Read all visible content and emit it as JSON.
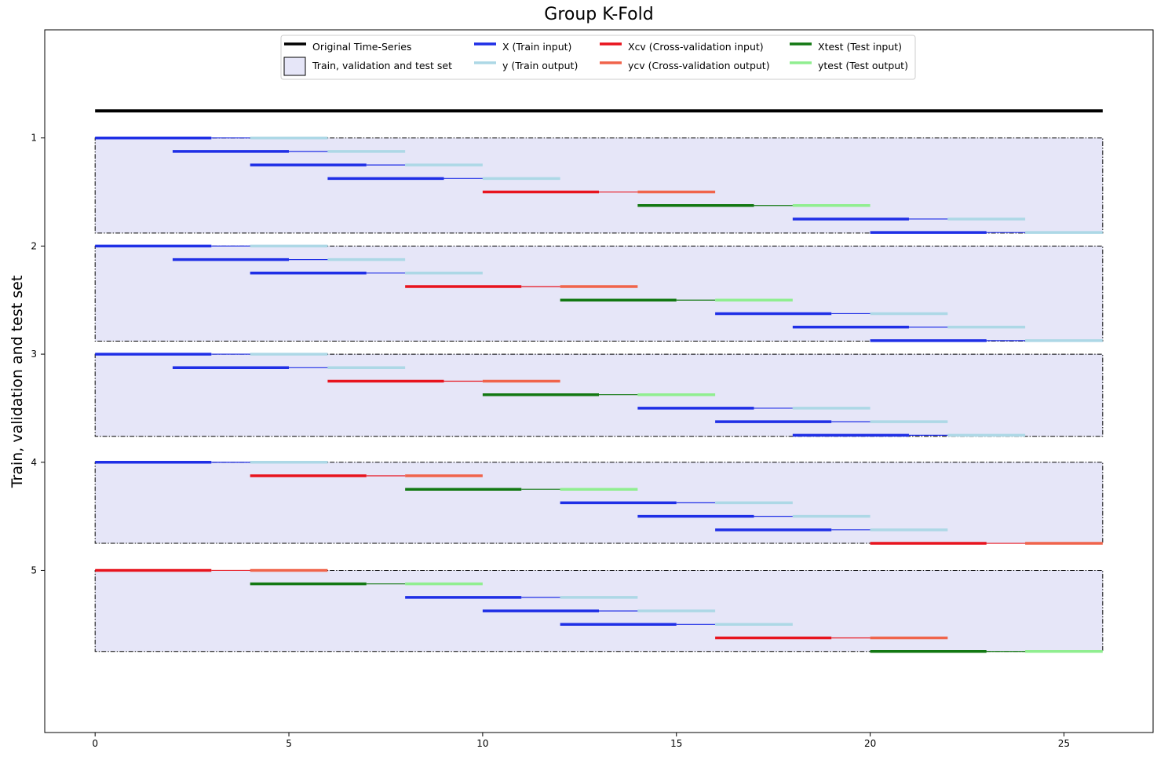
{
  "chart_data": {
    "type": "line",
    "title": "Group K-Fold",
    "xlabel": "",
    "ylabel": "Train, validation and test set",
    "xlim": [
      -1.3,
      27.3
    ],
    "ylim": [
      6.5,
      0.0
    ],
    "x_ticks": [
      0,
      5,
      10,
      15,
      20,
      25
    ],
    "x_tick_labels": [
      "0",
      "5",
      "10",
      "15",
      "20",
      "25"
    ],
    "y_ticks": [
      1,
      2,
      3,
      4,
      5
    ],
    "y_tick_labels": [
      "1",
      "2",
      "3",
      "4",
      "5"
    ],
    "grid": false,
    "legend_position": "top-center",
    "legend": [
      {
        "label": "Original Time-Series",
        "kind": "line",
        "color": "#000000"
      },
      {
        "label": "Train, validation and test set",
        "kind": "patch",
        "color": "#e6e6f8"
      },
      {
        "label": "X (Train input)",
        "kind": "line",
        "color": "#1f2fe6"
      },
      {
        "label": "y (Train output)",
        "kind": "line",
        "color": "#add8e6"
      },
      {
        "label": "Xcv (Cross-validation input)",
        "kind": "line",
        "color": "#e8141e"
      },
      {
        "label": "ycv (Cross-validation output)",
        "kind": "line",
        "color": "#f0644b"
      },
      {
        "label": "Xtest (Test input)",
        "kind": "line",
        "color": "#127812"
      },
      {
        "label": "ytest (Test output)",
        "kind": "line",
        "color": "#90ee90"
      }
    ],
    "colors": {
      "X": "#1f2fe6",
      "y": "#add8e6",
      "Xcv": "#e8141e",
      "ycv": "#f0644b",
      "Xtest": "#127812",
      "ytest": "#90ee90",
      "original": "#000000",
      "set_fill": "#e6e6f8"
    },
    "original_series": {
      "x_start": 0,
      "x_end": 26,
      "y": 0.75
    },
    "window": {
      "input_length": 3,
      "gap_length": 1,
      "output_length": 2
    },
    "folds": [
      {
        "fold": 1,
        "box": {
          "x": [
            0,
            26
          ],
          "y": [
            1.0,
            1.88
          ]
        },
        "windows": [
          {
            "start": 0,
            "y": 1.0,
            "role": "train"
          },
          {
            "start": 2,
            "y": 1.125,
            "role": "train"
          },
          {
            "start": 4,
            "y": 1.25,
            "role": "train"
          },
          {
            "start": 6,
            "y": 1.375,
            "role": "train"
          },
          {
            "start": 10,
            "y": 1.5,
            "role": "cv"
          },
          {
            "start": 14,
            "y": 1.625,
            "role": "test"
          },
          {
            "start": 18,
            "y": 1.75,
            "role": "train"
          },
          {
            "start": 20,
            "y": 1.875,
            "role": "train"
          }
        ]
      },
      {
        "fold": 2,
        "box": {
          "x": [
            0,
            26
          ],
          "y": [
            2.0,
            2.88
          ]
        },
        "windows": [
          {
            "start": 0,
            "y": 2.0,
            "role": "train"
          },
          {
            "start": 2,
            "y": 2.125,
            "role": "train"
          },
          {
            "start": 4,
            "y": 2.25,
            "role": "train"
          },
          {
            "start": 8,
            "y": 2.375,
            "role": "cv"
          },
          {
            "start": 12,
            "y": 2.5,
            "role": "test"
          },
          {
            "start": 16,
            "y": 2.625,
            "role": "train"
          },
          {
            "start": 18,
            "y": 2.75,
            "role": "train"
          },
          {
            "start": 20,
            "y": 2.875,
            "role": "train"
          }
        ]
      },
      {
        "fold": 3,
        "box": {
          "x": [
            0,
            26
          ],
          "y": [
            3.0,
            3.76
          ]
        },
        "windows": [
          {
            "start": 0,
            "y": 3.0,
            "role": "train"
          },
          {
            "start": 2,
            "y": 3.125,
            "role": "train"
          },
          {
            "start": 6,
            "y": 3.25,
            "role": "cv"
          },
          {
            "start": 10,
            "y": 3.375,
            "role": "test"
          },
          {
            "start": 14,
            "y": 3.5,
            "role": "train"
          },
          {
            "start": 16,
            "y": 3.625,
            "role": "train"
          },
          {
            "start": 18,
            "y": 3.75,
            "role": "train"
          }
        ]
      },
      {
        "fold": 4,
        "box": {
          "x": [
            0,
            26
          ],
          "y": [
            4.0,
            4.75
          ]
        },
        "windows": [
          {
            "start": 0,
            "y": 4.0,
            "role": "train"
          },
          {
            "start": 4,
            "y": 4.125,
            "role": "cv"
          },
          {
            "start": 8,
            "y": 4.25,
            "role": "test"
          },
          {
            "start": 12,
            "y": 4.375,
            "role": "train"
          },
          {
            "start": 14,
            "y": 4.5,
            "role": "train"
          },
          {
            "start": 16,
            "y": 4.625,
            "role": "train"
          },
          {
            "start": 20,
            "y": 4.75,
            "role": "cv"
          }
        ]
      },
      {
        "fold": 5,
        "box": {
          "x": [
            0,
            26
          ],
          "y": [
            5.0,
            5.75
          ]
        },
        "windows": [
          {
            "start": 0,
            "y": 5.0,
            "role": "cv"
          },
          {
            "start": 4,
            "y": 5.125,
            "role": "test"
          },
          {
            "start": 8,
            "y": 5.25,
            "role": "train"
          },
          {
            "start": 10,
            "y": 5.375,
            "role": "train"
          },
          {
            "start": 12,
            "y": 5.5,
            "role": "train"
          },
          {
            "start": 16,
            "y": 5.625,
            "role": "cv"
          },
          {
            "start": 20,
            "y": 5.75,
            "role": "test"
          }
        ]
      }
    ]
  }
}
